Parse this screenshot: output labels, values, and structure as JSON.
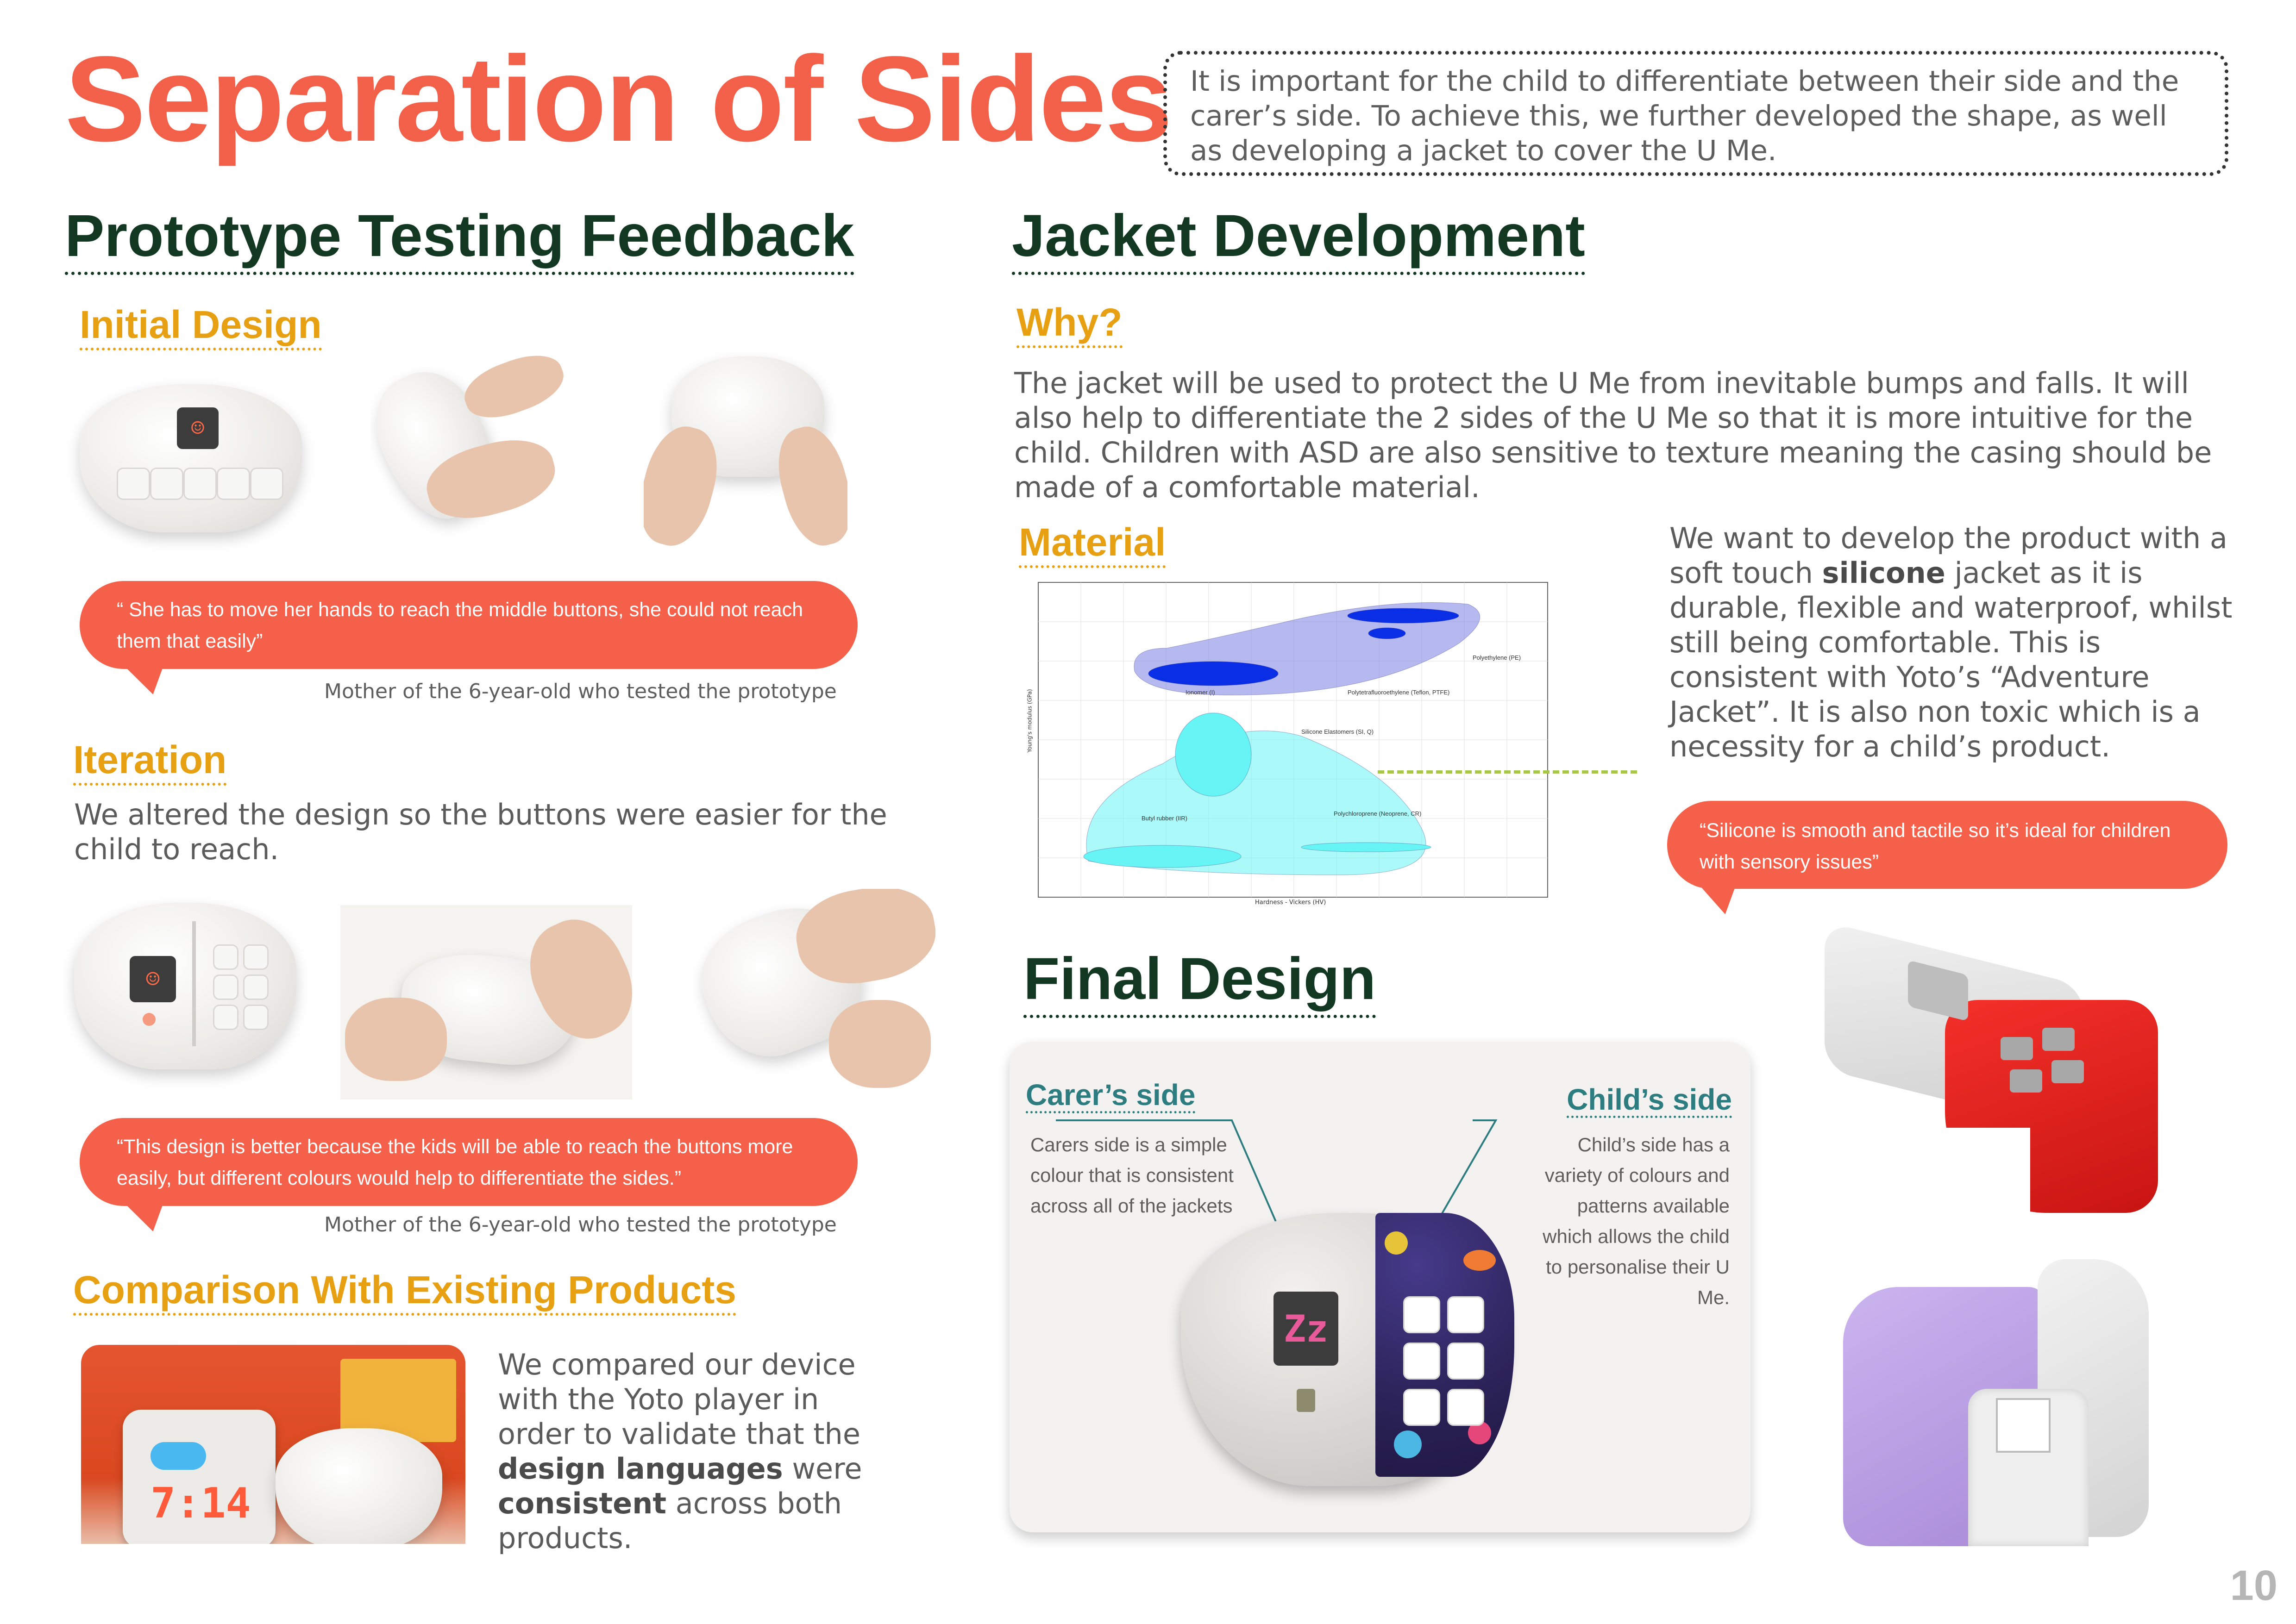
{
  "page": {
    "title": "Separation of Sides",
    "intro": "It is important for the child to differentiate between their side and the carer’s side. To achieve this, we further developed the shape, as well as developing a jacket to cover the U Me.",
    "page_number": "10"
  },
  "prototype": {
    "heading": "Prototype Testing Feedback",
    "initial": {
      "heading": "Initial Design",
      "quote": "“ She has to move her hands to reach the middle buttons, she could not reach them that easily”",
      "caption": "Mother of the 6-year-old who tested the prototype"
    },
    "iteration": {
      "heading": "Iteration",
      "text": "We altered the design so the buttons were easier for the child to reach.",
      "quote": "“This design is better because the kids will be able to reach the buttons more easily, but different colours would help to differentiate the sides.”",
      "caption": "Mother of the 6-year-old who tested the prototype"
    },
    "comparison": {
      "heading": "Comparison With Existing Products",
      "text_1": "We compared our device with the Yoto player in order to validate that the",
      "bold_1": "design languages",
      "text_2": "were",
      "bold_2": "consistent",
      "text_3": "across both products.",
      "yoto_time": "7:14"
    }
  },
  "jacket": {
    "heading": "Jacket Development",
    "why": {
      "heading": "Why?",
      "text": "The jacket will be used to protect the U Me from inevitable bumps and falls. It will also help to differentiate the 2 sides of the U Me so that it is more intuitive for the child. Children with ASD are also sensitive to texture meaning the casing should be made of a comfortable material."
    },
    "material": {
      "heading": "Material",
      "text_1": "We want to develop the product with a soft touch",
      "bold": "silicone",
      "text_2": "jacket as it is durable, flexible and waterproof, whilst still being comfortable. This is consistent with Yoto’s “Adventure Jacket”. It is also non toxic which is a necessity for a child’s product.",
      "quote": "“Silicone is smooth and tactile so it’s ideal for children with sensory issues”"
    }
  },
  "chart_data": {
    "type": "scatter",
    "title": "",
    "xlabel": "Hardness - Vickers (HV)",
    "ylabel": "Young's modulus (GPa)",
    "regions": [
      {
        "name": "Ionomer (I)",
        "color": "#0a2ee6"
      },
      {
        "name": "Polyethylene (PE)",
        "color": "#0a2ee6"
      },
      {
        "name": "Polytetrafluoroethylene (Teflon, PTFE)",
        "color": "#0a2ee6"
      },
      {
        "name": "Silicone Elastomers (SI, Q)",
        "color": "#66f4f4"
      },
      {
        "name": "Butyl rubber (IIR)",
        "color": "#66f4f4"
      },
      {
        "name": "Polychloroprene (Neoprene, CR)",
        "color": "#66f4f4"
      }
    ]
  },
  "final": {
    "heading": "Final Design",
    "carer": {
      "heading": "Carer’s side",
      "text": "Carers side is a simple colour that is consistent across all of the jackets"
    },
    "child": {
      "heading": "Child’s side",
      "text": "Child’s side has a variety of colours and patterns available which allows the child to personalise their U Me."
    },
    "screen_text": "Zz"
  },
  "colors": {
    "accent": "#f2604a",
    "heading_green": "#123822",
    "subheading_gold": "#e7a012",
    "side_teal": "#2d7d80",
    "jacket_red": "#e8231f",
    "jacket_purple": "#b99ce6"
  }
}
